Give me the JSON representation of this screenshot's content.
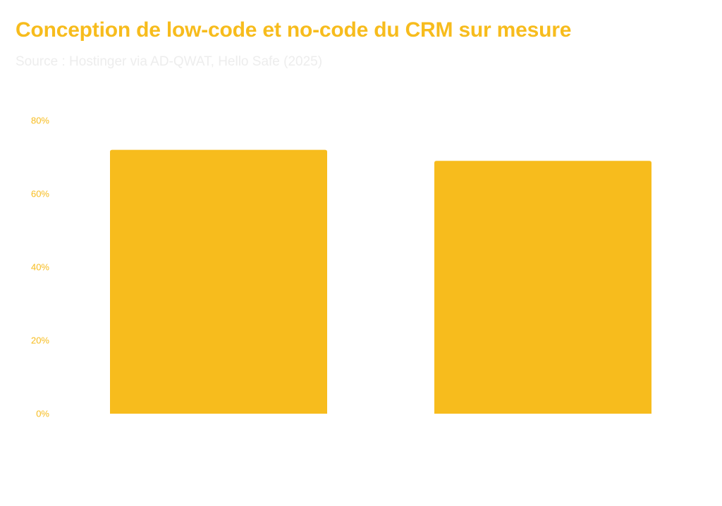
{
  "chart_data": {
    "type": "bar",
    "title": "Conception de low-code et no-code du CRM sur mesure",
    "subtitle": "Source : Hostinger via AD-QWAT, Hello Safe (2025)",
    "categories": [
      "",
      ""
    ],
    "values": [
      72,
      69
    ],
    "yticks": [
      "0%",
      "20%",
      "40%",
      "60%",
      "80%"
    ],
    "ylim": [
      0,
      80
    ],
    "grid": false,
    "colors": {
      "bar": "#F7BC1D",
      "title": "#F7BC1D",
      "tick": "#F7BC1D",
      "subtitle": "#EDEDED"
    }
  }
}
